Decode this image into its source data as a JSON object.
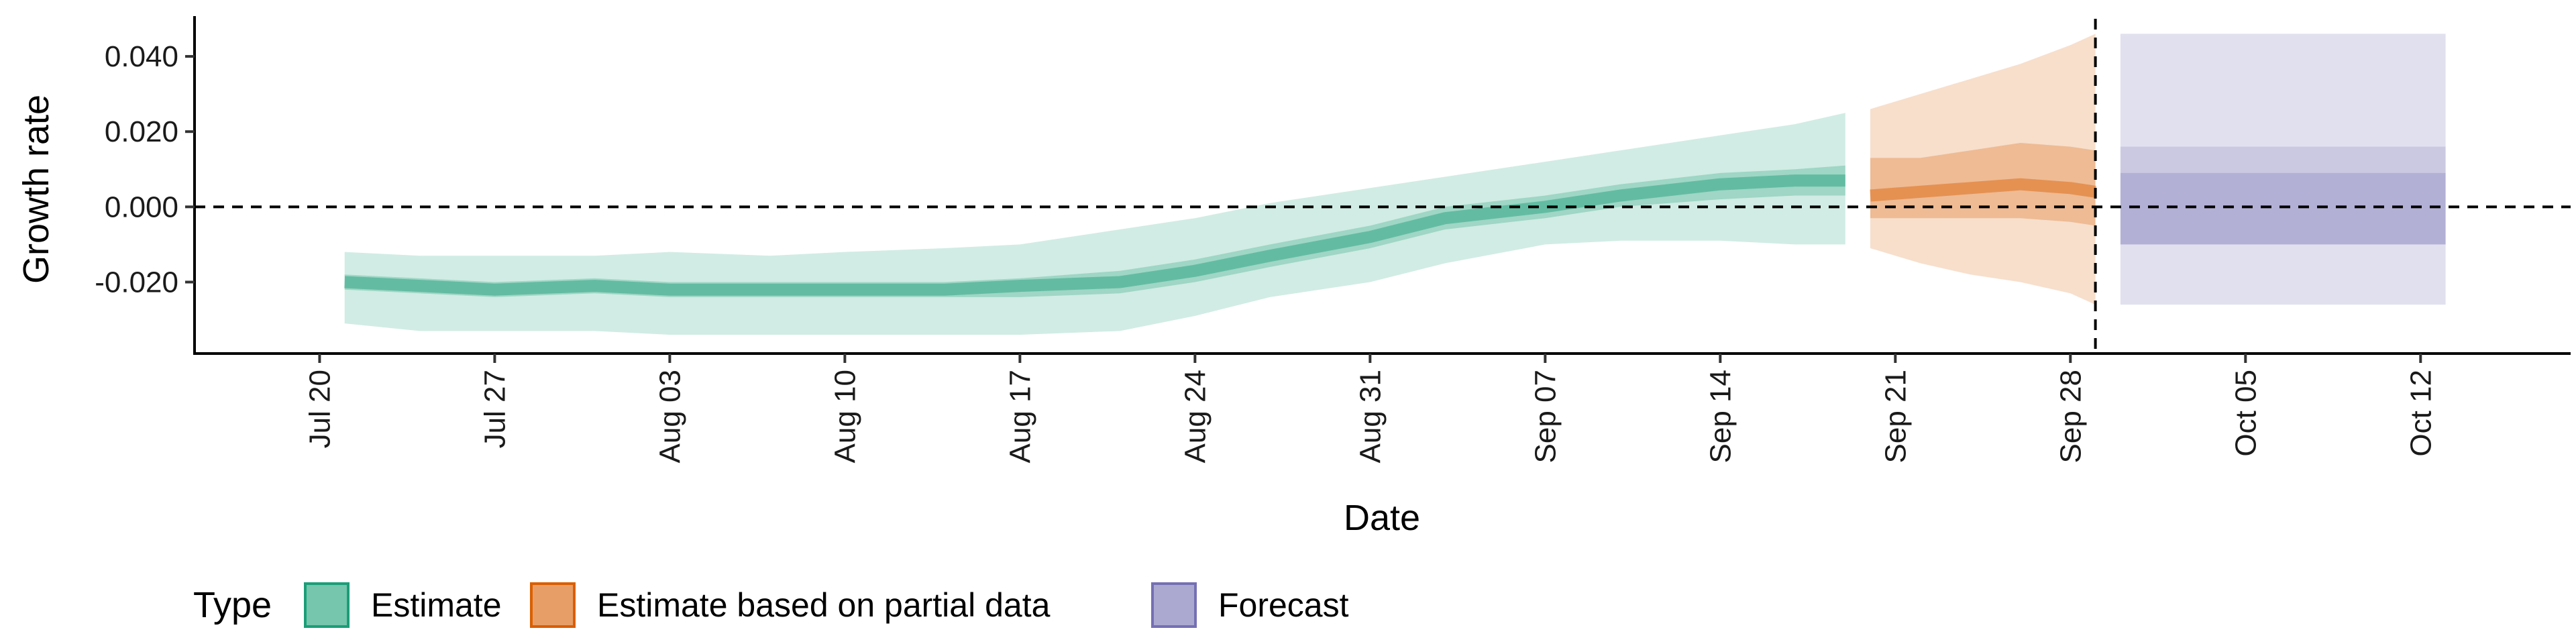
{
  "chart_data": {
    "type": "area",
    "xlabel": "Date",
    "ylabel": "Growth rate",
    "x_tick_labels": [
      "Jul 20",
      "Jul 27",
      "Aug 03",
      "Aug 10",
      "Aug 17",
      "Aug 24",
      "Aug 31",
      "Sep 07",
      "Sep 14",
      "Sep 21",
      "Sep 28",
      "Oct 05",
      "Oct 12"
    ],
    "y_tick_labels": [
      "-0.020",
      "0.000",
      "0.020",
      "0.040"
    ],
    "y_ticks": [
      -0.02,
      0.0,
      0.02,
      0.04
    ],
    "x_range": [
      "2020-07-15",
      "2020-10-18"
    ],
    "ylim": [
      -0.039,
      0.05
    ],
    "grid": false,
    "reference_lines": [
      {
        "axis": "y",
        "value": 0.0,
        "style": "dashed"
      },
      {
        "axis": "x",
        "value": "2020-09-29",
        "style": "dashed"
      }
    ],
    "legend": {
      "title": "Type",
      "position": "bottom-left",
      "entries": [
        "Estimate",
        "Estimate based on partial data",
        "Forecast"
      ]
    },
    "colors": {
      "Estimate": "#1b9e77",
      "Estimate based on partial data": "#d95f02",
      "Forecast": "#7570b3"
    },
    "series": [
      {
        "type": "Estimate",
        "x": [
          "2020-07-21",
          "2020-07-24",
          "2020-07-27",
          "2020-07-31",
          "2020-08-03",
          "2020-08-07",
          "2020-08-10",
          "2020-08-14",
          "2020-08-17",
          "2020-08-21",
          "2020-08-24",
          "2020-08-27",
          "2020-08-31",
          "2020-09-03",
          "2020-09-07",
          "2020-09-10",
          "2020-09-14",
          "2020-09-17",
          "2020-09-19"
        ],
        "median": [
          -0.02,
          -0.021,
          -0.022,
          -0.021,
          -0.022,
          -0.022,
          -0.022,
          -0.022,
          -0.021,
          -0.02,
          -0.017,
          -0.013,
          -0.008,
          -0.003,
          0.0,
          0.003,
          0.006,
          0.007,
          0.007
        ],
        "ci_50": [
          [
            -0.022,
            -0.018
          ],
          [
            -0.023,
            -0.019
          ],
          [
            -0.024,
            -0.02
          ],
          [
            -0.023,
            -0.019
          ],
          [
            -0.024,
            -0.02
          ],
          [
            -0.024,
            -0.02
          ],
          [
            -0.024,
            -0.02
          ],
          [
            -0.024,
            -0.02
          ],
          [
            -0.024,
            -0.019
          ],
          [
            -0.023,
            -0.017
          ],
          [
            -0.02,
            -0.014
          ],
          [
            -0.016,
            -0.01
          ],
          [
            -0.011,
            -0.005
          ],
          [
            -0.006,
            0.0
          ],
          [
            -0.003,
            0.003
          ],
          [
            0.0,
            0.006
          ],
          [
            0.002,
            0.009
          ],
          [
            0.003,
            0.01
          ],
          [
            0.003,
            0.011
          ]
        ],
        "ci_90": [
          [
            -0.031,
            -0.012
          ],
          [
            -0.033,
            -0.013
          ],
          [
            -0.033,
            -0.013
          ],
          [
            -0.033,
            -0.013
          ],
          [
            -0.034,
            -0.012
          ],
          [
            -0.034,
            -0.013
          ],
          [
            -0.034,
            -0.012
          ],
          [
            -0.034,
            -0.011
          ],
          [
            -0.034,
            -0.01
          ],
          [
            -0.033,
            -0.006
          ],
          [
            -0.029,
            -0.003
          ],
          [
            -0.024,
            0.001
          ],
          [
            -0.02,
            0.005
          ],
          [
            -0.015,
            0.008
          ],
          [
            -0.01,
            0.012
          ],
          [
            -0.009,
            0.015
          ],
          [
            -0.009,
            0.019
          ],
          [
            -0.01,
            0.022
          ],
          [
            -0.01,
            0.025
          ]
        ]
      },
      {
        "type": "Estimate based on partial data",
        "x": [
          "2020-09-20",
          "2020-09-22",
          "2020-09-24",
          "2020-09-26",
          "2020-09-28",
          "2020-09-29"
        ],
        "median": [
          0.003,
          0.004,
          0.005,
          0.006,
          0.005,
          0.004
        ],
        "ci_50": [
          [
            -0.003,
            0.013
          ],
          [
            -0.003,
            0.013
          ],
          [
            -0.003,
            0.015
          ],
          [
            -0.003,
            0.017
          ],
          [
            -0.004,
            0.016
          ],
          [
            -0.005,
            0.015
          ]
        ],
        "ci_90": [
          [
            -0.011,
            0.026
          ],
          [
            -0.015,
            0.03
          ],
          [
            -0.018,
            0.034
          ],
          [
            -0.02,
            0.038
          ],
          [
            -0.023,
            0.043
          ],
          [
            -0.026,
            0.046
          ]
        ]
      },
      {
        "type": "Forecast",
        "x": [
          "2020-09-30",
          "2020-10-13"
        ],
        "median": [
          0.0,
          0.0
        ],
        "ci_50": [
          [
            -0.01,
            0.009
          ],
          [
            -0.01,
            0.009
          ]
        ],
        "ci_90": [
          [
            -0.01,
            0.016
          ],
          [
            -0.01,
            0.016
          ]
        ],
        "ci_outer": [
          [
            -0.026,
            0.046
          ],
          [
            -0.026,
            0.046
          ]
        ]
      }
    ]
  }
}
